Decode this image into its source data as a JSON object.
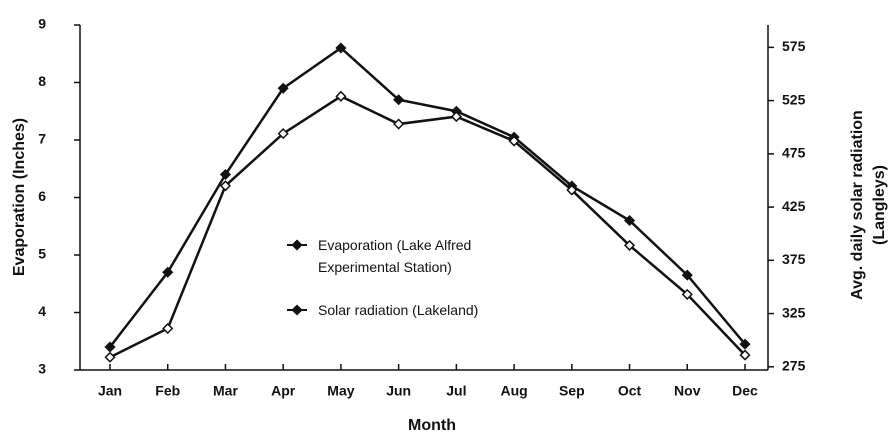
{
  "chart_data": {
    "type": "line",
    "xlabel": "Month",
    "ylabel": "Evaporation (Inches)",
    "y2label": [
      "Avg. daily solar radiation",
      "(Langleys)"
    ],
    "categories": [
      "Jan",
      "Feb",
      "Mar",
      "Apr",
      "May",
      "Jun",
      "Jul",
      "Aug",
      "Sep",
      "Oct",
      "Nov",
      "Dec"
    ],
    "series": [
      {
        "name": "Evaporation (Lake Alfred Experimental Station)",
        "color": "#111111",
        "marker": "filled",
        "values": [
          3.4,
          4.7,
          6.4,
          7.9,
          8.6,
          7.7,
          7.5,
          7.05,
          6.2,
          5.6,
          4.65,
          3.45
        ]
      },
      {
        "name": "Solar radiation (Lakeland)",
        "color": "#111111",
        "marker": "open",
        "axis": "y2",
        "values": [
          284,
          311,
          445,
          494,
          529,
          503,
          510,
          487,
          441,
          389,
          343,
          286
        ]
      }
    ],
    "ylim": [
      3,
      9
    ],
    "yticks": [
      3,
      4,
      5,
      6,
      7,
      8,
      9
    ],
    "y2lim": [
      272,
      596
    ],
    "y2ticks": [
      275,
      325,
      375,
      425,
      475,
      525,
      575
    ],
    "grid": false,
    "legend": "center"
  }
}
